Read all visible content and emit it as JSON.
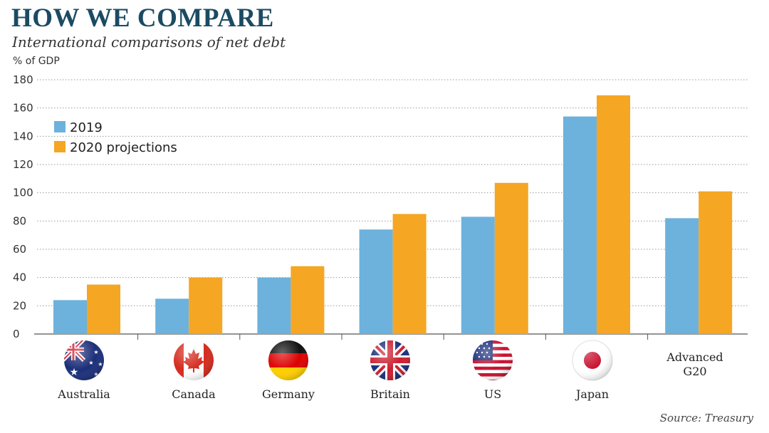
{
  "header": {
    "title": "HOW WE COMPARE",
    "subtitle": "International comparisons of net debt",
    "unit_label": "% of GDP"
  },
  "source": "Source: Treasury",
  "chart_data": {
    "type": "bar",
    "title": "HOW WE COMPARE",
    "subtitle": "International comparisons of net debt",
    "ylabel": "% of GDP",
    "xlabel": "",
    "ylim": [
      0,
      180
    ],
    "yticks": [
      0,
      20,
      40,
      60,
      80,
      100,
      120,
      140,
      160,
      180
    ],
    "grid": true,
    "legend_position": "top-left",
    "categories": [
      "Australia",
      "Canada",
      "Germany",
      "Britain",
      "US",
      "Japan",
      "Advanced G20"
    ],
    "category_icons": [
      "australia-flag-icon",
      "canada-flag-icon",
      "germany-flag-icon",
      "britain-flag-icon",
      "us-flag-icon",
      "japan-flag-icon",
      ""
    ],
    "series": [
      {
        "name": "2019",
        "color": "#6cb2dd",
        "values": [
          24,
          25,
          40,
          74,
          83,
          154,
          82
        ]
      },
      {
        "name": "2020 projections",
        "color": "#f5a623",
        "values": [
          35,
          40,
          48,
          85,
          107,
          169,
          101
        ]
      }
    ]
  }
}
